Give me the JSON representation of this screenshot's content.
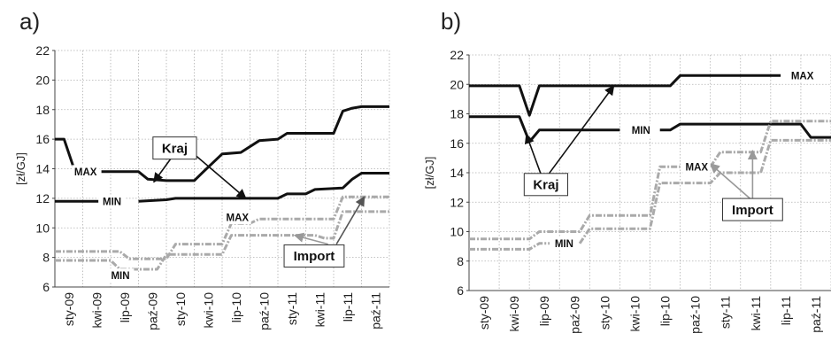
{
  "chart_data": [
    {
      "panel": "a)",
      "type": "line",
      "ylabel": "[zł/GJ]",
      "ylim": [
        6,
        22
      ],
      "yticks": [
        6,
        8,
        10,
        12,
        14,
        16,
        18,
        20,
        22
      ],
      "categories": [
        "sty-09",
        "kwi-09",
        "lip-09",
        "paź-09",
        "sty-10",
        "kwi-10",
        "lip-10",
        "paź-10",
        "sty-11",
        "kwi-11",
        "lip-11",
        "paź-11"
      ],
      "grid": true,
      "series": [
        {
          "name": "Kraj MAX",
          "color": "#111111",
          "style": "solid",
          "points": [
            [
              0,
              16
            ],
            [
              0.33,
              16
            ],
            [
              0.67,
              14.1
            ],
            [
              1,
              13.8
            ],
            [
              1,
              null
            ],
            [
              1.67,
              13.8
            ],
            [
              3,
              13.8
            ],
            [
              3.33,
              13.3
            ],
            [
              4,
              13.2
            ],
            [
              5,
              13.2
            ],
            [
              5.33,
              13.8
            ],
            [
              6,
              15
            ],
            [
              6.67,
              15.1
            ],
            [
              7.33,
              15.9
            ],
            [
              8,
              16.0
            ],
            [
              8.33,
              16.4
            ],
            [
              10,
              16.4
            ],
            [
              10.33,
              17.9
            ],
            [
              10.67,
              18.1
            ],
            [
              11,
              18.2
            ],
            [
              12,
              18.2
            ]
          ]
        },
        {
          "name": "Kraj MIN",
          "color": "#111111",
          "style": "solid",
          "points": [
            [
              0,
              11.8
            ],
            [
              2,
              11.8
            ],
            [
              2,
              null
            ],
            [
              3,
              11.8
            ],
            [
              4,
              11.9
            ],
            [
              4.33,
              12.0
            ],
            [
              8,
              12.0
            ],
            [
              8.33,
              12.3
            ],
            [
              9,
              12.3
            ],
            [
              9.33,
              12.6
            ],
            [
              10.33,
              12.7
            ],
            [
              10.67,
              13.3
            ],
            [
              11,
              13.7
            ],
            [
              12,
              13.7
            ]
          ]
        },
        {
          "name": "Import MAX",
          "color": "#aaaaaa",
          "style": "dashdot",
          "points": [
            [
              0,
              8.4
            ],
            [
              2.33,
              8.4
            ],
            [
              2.67,
              7.9
            ],
            [
              4,
              7.9
            ],
            [
              4.33,
              8.9
            ],
            [
              6,
              8.9
            ],
            [
              6.33,
              10.3
            ],
            [
              7,
              10.3
            ],
            [
              7.33,
              10.6
            ],
            [
              10,
              10.6
            ],
            [
              10.33,
              12.1
            ],
            [
              12,
              12.1
            ]
          ]
        },
        {
          "name": "Import MIN",
          "color": "#aaaaaa",
          "style": "dashdot",
          "points": [
            [
              0,
              7.8
            ],
            [
              2,
              7.8
            ],
            [
              2.33,
              7.2
            ],
            [
              3.67,
              7.2
            ],
            [
              4,
              8.2
            ],
            [
              6,
              8.2
            ],
            [
              6.33,
              9.5
            ],
            [
              9.33,
              9.5
            ],
            [
              9.67,
              9.3
            ],
            [
              10,
              9.3
            ],
            [
              10.33,
              11.1
            ],
            [
              12,
              11.1
            ]
          ]
        }
      ],
      "annotations": [
        {
          "text": "MAX",
          "at": [
            1.1,
            13.8
          ],
          "boxed": false
        },
        {
          "text": "MIN",
          "at": [
            2.05,
            11.8
          ],
          "boxed": false
        },
        {
          "text": "MIN",
          "at": [
            2.35,
            6.8
          ],
          "boxed": false
        },
        {
          "text": "MAX",
          "at": [
            6.55,
            10.7
          ],
          "boxed": false
        },
        {
          "text": "Kraj",
          "at": [
            4.3,
            15.4
          ],
          "boxed": true
        },
        {
          "text": "Import",
          "at": [
            9.3,
            8.1
          ],
          "boxed": true
        }
      ],
      "arrows": [
        {
          "from": [
            4.55,
            15.7
          ],
          "to": [
            3.55,
            13.1
          ],
          "color": "#111111"
        },
        {
          "from": [
            4.55,
            15.7
          ],
          "to": [
            6.85,
            12.0
          ],
          "color": "#111111"
        },
        {
          "from": [
            9.8,
            8.9
          ],
          "to": [
            8.6,
            9.5
          ],
          "color": "#999999"
        },
        {
          "from": [
            10.1,
            8.9
          ],
          "to": [
            11.1,
            12.1
          ],
          "color": "#555555"
        }
      ]
    },
    {
      "panel": "b)",
      "type": "line",
      "ylabel": "[zł/GJ]",
      "ylim": [
        6,
        22
      ],
      "yticks": [
        6,
        8,
        10,
        12,
        14,
        16,
        18,
        20,
        22
      ],
      "categories": [
        "sty-09",
        "kwi-09",
        "lip-09",
        "paź-09",
        "sty-10",
        "kwi-10",
        "lip-10",
        "paź-10",
        "sty-11",
        "kwi-11",
        "lip-11",
        "paź-11"
      ],
      "grid": true,
      "series": [
        {
          "name": "Kraj MAX",
          "color": "#111111",
          "style": "solid",
          "points": [
            [
              0,
              19.9
            ],
            [
              1.67,
              19.9
            ],
            [
              2,
              17.9
            ],
            [
              2.33,
              19.9
            ],
            [
              6.67,
              19.9
            ],
            [
              7,
              20.6
            ],
            [
              10.33,
              20.6
            ],
            [
              10.33,
              null
            ],
            [
              12,
              20.6
            ]
          ]
        },
        {
          "name": "Kraj MIN",
          "color": "#111111",
          "style": "solid",
          "points": [
            [
              0,
              17.8
            ],
            [
              1.67,
              17.8
            ],
            [
              2,
              16.1
            ],
            [
              2.33,
              16.9
            ],
            [
              5,
              16.9
            ],
            [
              5,
              null
            ],
            [
              6.33,
              16.9
            ],
            [
              6.67,
              16.9
            ],
            [
              7,
              17.3
            ],
            [
              11,
              17.3
            ],
            [
              11.33,
              16.4
            ],
            [
              12,
              16.4
            ]
          ]
        },
        {
          "name": "Import MAX",
          "color": "#aaaaaa",
          "style": "dashdot",
          "points": [
            [
              0,
              9.5
            ],
            [
              2,
              9.5
            ],
            [
              2.33,
              10.0
            ],
            [
              3.67,
              10.0
            ],
            [
              4,
              11.1
            ],
            [
              6,
              11.1
            ],
            [
              6.33,
              14.4
            ],
            [
              7,
              14.4
            ],
            [
              7,
              null
            ],
            [
              8,
              14.4
            ],
            [
              8.33,
              15.4
            ],
            [
              9.67,
              15.4
            ],
            [
              10,
              17.5
            ],
            [
              12,
              17.5
            ]
          ]
        },
        {
          "name": "Import MIN",
          "color": "#aaaaaa",
          "style": "dashdot",
          "points": [
            [
              0,
              8.8
            ],
            [
              2,
              8.8
            ],
            [
              2.33,
              9.2
            ],
            [
              2.67,
              9.2
            ],
            [
              2.67,
              null
            ],
            [
              3.67,
              9.2
            ],
            [
              4,
              10.2
            ],
            [
              6,
              10.2
            ],
            [
              6.33,
              13.3
            ],
            [
              8,
              13.3
            ],
            [
              8.33,
              14.0
            ],
            [
              9.67,
              14.0
            ],
            [
              10,
              16.2
            ],
            [
              12,
              16.2
            ]
          ]
        }
      ],
      "annotations": [
        {
          "text": "MAX",
          "at": [
            11.05,
            20.6
          ],
          "boxed": false
        },
        {
          "text": "MIN",
          "at": [
            5.7,
            16.9
          ],
          "boxed": false
        },
        {
          "text": "MAX",
          "at": [
            7.55,
            14.4
          ],
          "boxed": false
        },
        {
          "text": "MIN",
          "at": [
            3.15,
            9.2
          ],
          "boxed": false
        },
        {
          "text": "Kraj",
          "at": [
            2.55,
            13.2
          ],
          "boxed": true
        },
        {
          "text": "Import",
          "at": [
            9.4,
            11.5
          ],
          "boxed": true
        }
      ],
      "arrows": [
        {
          "from": [
            2.4,
            13.8
          ],
          "to": [
            1.9,
            16.6
          ],
          "color": "#111111"
        },
        {
          "from": [
            2.6,
            13.8
          ],
          "to": [
            4.8,
            19.9
          ],
          "color": "#111111"
        },
        {
          "from": [
            9.4,
            12.1
          ],
          "to": [
            8.0,
            14.6
          ],
          "color": "#999999"
        },
        {
          "from": [
            9.4,
            12.1
          ],
          "to": [
            9.4,
            15.5
          ],
          "color": "#999999"
        }
      ]
    }
  ]
}
